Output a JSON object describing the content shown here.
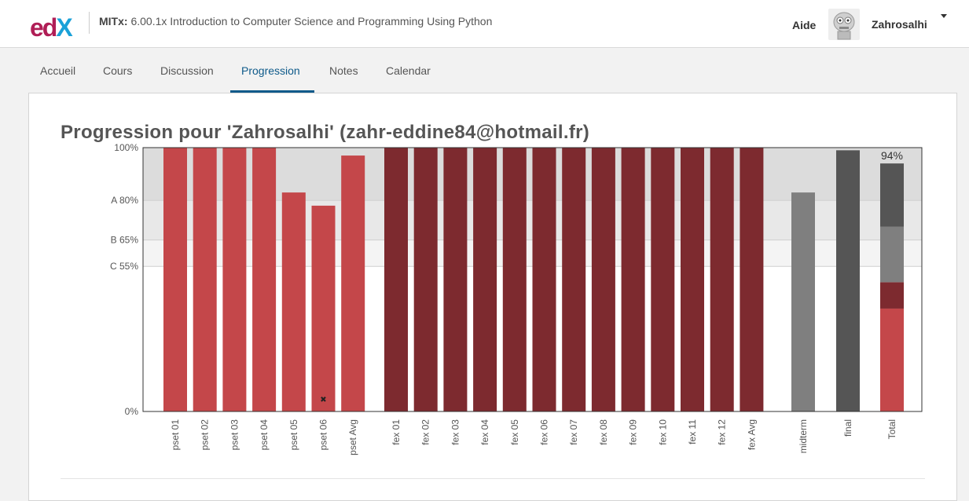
{
  "header": {
    "logo_text": "edX",
    "course_org": "MITx:",
    "course_name": "6.00.1x Introduction to Computer Science and Programming Using Python",
    "help_label": "Aide",
    "username": "Zahrosalhi"
  },
  "tabs": [
    {
      "label": "Accueil",
      "active": false
    },
    {
      "label": "Cours",
      "active": false
    },
    {
      "label": "Discussion",
      "active": false
    },
    {
      "label": "Progression",
      "active": true
    },
    {
      "label": "Notes",
      "active": false
    },
    {
      "label": "Calendar",
      "active": false
    }
  ],
  "page": {
    "title": "Progression pour 'Zahrosalhi' (zahr-eddine84@hotmail.fr)"
  },
  "colors": {
    "pset": "#c4474a",
    "fex": "#7d2a2f",
    "midterm": "#7f7f7f",
    "final": "#555555",
    "accent": "#0e5a8a"
  },
  "chart_data": {
    "type": "bar",
    "ylim": [
      0,
      100
    ],
    "grade_cutoffs": [
      {
        "label": "A 80%",
        "value": 80
      },
      {
        "label": "B 65%",
        "value": 65
      },
      {
        "label": "C 55%",
        "value": 55
      }
    ],
    "y_ticks": [
      {
        "label": "100%",
        "value": 100
      },
      {
        "label": "0%",
        "value": 0
      }
    ],
    "categories": [
      "pset 01",
      "pset 02",
      "pset 03",
      "pset 04",
      "pset 05",
      "pset 06",
      "pset Avg",
      "fex 01",
      "fex 02",
      "fex 03",
      "fex 04",
      "fex 05",
      "fex 06",
      "fex 07",
      "fex 08",
      "fex 09",
      "fex 10",
      "fex 11",
      "fex 12",
      "fex Avg",
      "midterm",
      "final",
      "Total"
    ],
    "values": [
      100,
      100,
      100,
      100,
      83,
      78,
      97,
      100,
      100,
      100,
      100,
      100,
      100,
      100,
      100,
      100,
      100,
      100,
      100,
      100,
      83,
      99,
      94
    ],
    "groups": [
      "pset",
      "pset",
      "pset",
      "pset",
      "pset",
      "pset",
      "pset",
      "fex",
      "fex",
      "fex",
      "fex",
      "fex",
      "fex",
      "fex",
      "fex",
      "fex",
      "fex",
      "fex",
      "fex",
      "fex",
      "midterm",
      "final",
      "total"
    ],
    "dropped_marker": {
      "category": "pset 06",
      "symbol": "✖"
    },
    "total_label": "94%",
    "total_segments": [
      {
        "group": "pset",
        "value": 39
      },
      {
        "group": "fex",
        "value": 10
      },
      {
        "group": "midterm",
        "value": 21
      },
      {
        "group": "final",
        "value": 24
      }
    ]
  }
}
